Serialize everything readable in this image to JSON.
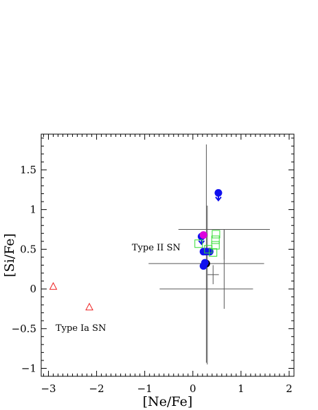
{
  "chart_data": {
    "type": "scatter",
    "xlabel": "[Ne/Fe]",
    "ylabel": "[Si/Fe]",
    "xlim": [
      -3.15,
      2.1
    ],
    "ylim": [
      -1.1,
      1.95
    ],
    "xticks": [
      -3,
      -2,
      -1,
      0,
      1,
      2
    ],
    "xtick_labels": [
      "−3",
      "−2",
      "−1",
      "0",
      "1",
      "2"
    ],
    "yticks": [
      -1,
      -0.5,
      0,
      0.5,
      1,
      1.5
    ],
    "ytick_labels": [
      "−1",
      "−0.5",
      "0",
      "0.5",
      "1",
      "1.5"
    ],
    "grid": false,
    "annotations": [
      {
        "text": "Type II SN",
        "x": -2.1,
        "y": 0.5
      },
      {
        "text": "Type Ia SN",
        "x": -2.7,
        "y": -0.47
      }
    ],
    "colors": {
      "axes": "#000000",
      "errorbar": "#555555",
      "black_cross": "#000000",
      "blue": "#1010ee",
      "magenta": "#dd00dd",
      "green": "#33dd33",
      "red": "#ee2222"
    },
    "series": [
      {
        "marker": "cross",
        "color": "black",
        "points": [
          {
            "x": 0.65,
            "y": 0.75,
            "xerr": 0.95,
            "yerr_low": 0.38,
            "yerr_high": 0.0
          },
          {
            "x": 0.42,
            "y": 0.18,
            "xerr": 0.12,
            "yerr_low": 0.12,
            "yerr_high": 0.12
          },
          {
            "x": 0.28,
            "y": 0.0,
            "xerr": 0.97,
            "yerr_low": 0.0,
            "yerr_high": 0.0
          }
        ]
      },
      {
        "marker": "filled-circle",
        "color": "black",
        "points": [
          {
            "x": 0.28,
            "y": 0.32,
            "xerr": 1.2,
            "yerr_low": 1.25,
            "yerr_high": 1.5
          }
        ]
      },
      {
        "marker": "filled-circle",
        "color": "blue",
        "points": [
          {
            "x": 0.53,
            "y": 1.21,
            "upper_limit": true
          },
          {
            "x": 0.18,
            "y": 0.66,
            "upper_limit": true
          },
          {
            "x": 0.22,
            "y": 0.47
          },
          {
            "x": 0.28,
            "y": 0.47
          },
          {
            "x": 0.35,
            "y": 0.47
          },
          {
            "x": 0.25,
            "y": 0.33
          },
          {
            "x": 0.22,
            "y": 0.29
          }
        ]
      },
      {
        "marker": "filled-circle",
        "color": "magenta",
        "points": [
          {
            "x": 0.22,
            "y": 0.68
          }
        ]
      },
      {
        "marker": "open-square",
        "color": "green",
        "points": [
          {
            "x": 0.12,
            "y": 0.57
          },
          {
            "x": 0.32,
            "y": 0.5
          },
          {
            "x": 0.42,
            "y": 0.46
          },
          {
            "x": 0.47,
            "y": 0.55
          },
          {
            "x": 0.47,
            "y": 0.62
          },
          {
            "x": 0.48,
            "y": 0.69
          }
        ]
      },
      {
        "marker": "open-triangle",
        "color": "red",
        "points": [
          {
            "x": -2.9,
            "y": 0.03
          },
          {
            "x": -2.15,
            "y": -0.23
          }
        ]
      }
    ]
  }
}
